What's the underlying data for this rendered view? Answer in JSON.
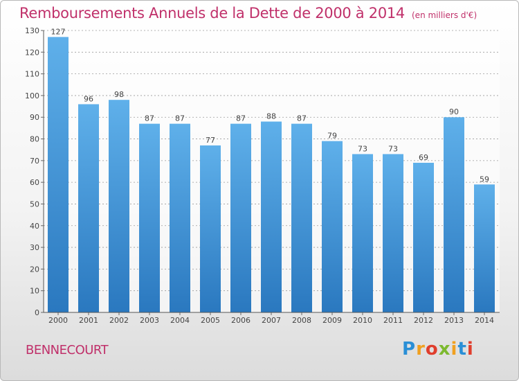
{
  "header": {
    "title": "Remboursements Annuels de la Dette de 2000 à 2014",
    "unit": "(en milliers d'€)"
  },
  "footer": {
    "commune": "BENNECOURT",
    "logo_letters": [
      "P",
      "r",
      "o",
      "x",
      "i",
      "t",
      "i"
    ]
  },
  "colors": {
    "title": "#c0306a",
    "bar_top": "#5fb0ea",
    "bar_bottom": "#2a78bf",
    "grid": "#9a9a9a"
  },
  "chart_data": {
    "type": "bar",
    "title": "Remboursements Annuels de la Dette de 2000 à 2014",
    "xlabel": "",
    "ylabel": "",
    "categories": [
      "2000",
      "2001",
      "2002",
      "2003",
      "2004",
      "2005",
      "2006",
      "2007",
      "2008",
      "2009",
      "2010",
      "2011",
      "2012",
      "2013",
      "2014"
    ],
    "values": [
      127,
      96,
      98,
      87,
      87,
      77,
      87,
      88,
      87,
      79,
      73,
      73,
      69,
      90,
      59
    ],
    "ylim": [
      0,
      130
    ],
    "yticks": [
      0,
      10,
      20,
      30,
      40,
      50,
      60,
      70,
      80,
      90,
      100,
      110,
      120,
      130
    ],
    "grid": true,
    "data_labels": true
  }
}
